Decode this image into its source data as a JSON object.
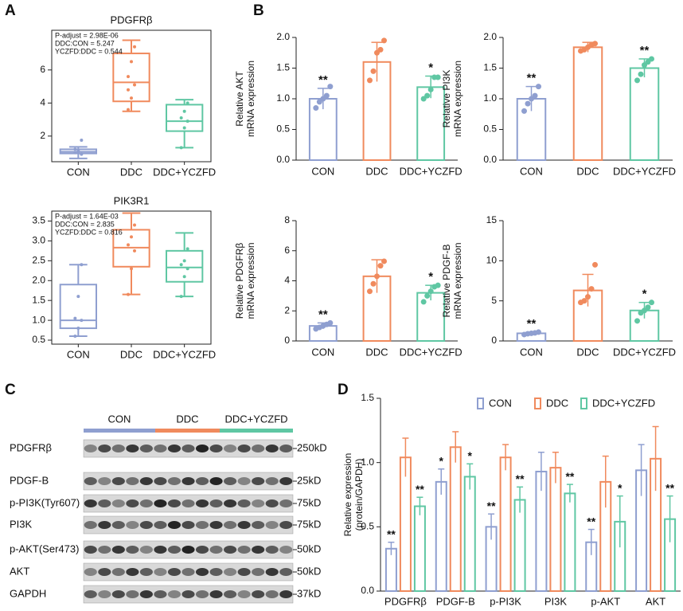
{
  "panel_labels": [
    "A",
    "B",
    "C",
    "D"
  ],
  "chart_data": [
    {
      "type": "box",
      "title": "PDGFRβ",
      "categories": [
        "CON",
        "DDC",
        "DDC+YCZFD"
      ],
      "colors": [
        "#8f9fd0",
        "#f08a5d",
        "#5fc7a3"
      ],
      "q1": [
        0.95,
        4.1,
        2.3
      ],
      "median": [
        1.05,
        5.25,
        2.9
      ],
      "q3": [
        1.2,
        7.0,
        3.9
      ],
      "whisker_low": [
        0.65,
        3.5,
        1.3
      ],
      "whisker_high": [
        1.35,
        7.8,
        4.2
      ],
      "points": [
        [
          1.0,
          1.1,
          0.9,
          1.2,
          1.05,
          1.75
        ],
        [
          3.6,
          4.3,
          5.1,
          5.6,
          6.5,
          7.4,
          4.8
        ],
        [
          1.3,
          2.5,
          2.9,
          3.1,
          3.5,
          4.0
        ]
      ],
      "annotation": [
        "P-adjust = 2.98E-06",
        "DDC:CON = 5.247",
        "YCZFD:DDC = 0.544"
      ],
      "ylim": [
        0.45,
        8.4
      ],
      "yticks": [
        2,
        4,
        6
      ]
    },
    {
      "type": "box",
      "title": "PIK3R1",
      "categories": [
        "CON",
        "DDC",
        "DDC+YCZFD"
      ],
      "colors": [
        "#8f9fd0",
        "#f08a5d",
        "#5fc7a3"
      ],
      "q1": [
        0.8,
        2.35,
        1.97
      ],
      "median": [
        1.0,
        2.83,
        2.33
      ],
      "q3": [
        1.9,
        3.28,
        2.75
      ],
      "whisker_low": [
        0.6,
        1.65,
        1.6
      ],
      "whisker_high": [
        2.4,
        3.7,
        3.2
      ],
      "points": [
        [
          0.6,
          0.8,
          1.0,
          1.05,
          1.6,
          2.4
        ],
        [
          1.65,
          2.3,
          2.75,
          2.9,
          3.1,
          3.4
        ],
        [
          1.6,
          2.1,
          2.3,
          2.4,
          2.5,
          2.8
        ]
      ],
      "annotation": [
        "P-adjust = 1.64E-03",
        "DDC:CON = 2.835",
        "YCZFD:DDC = 0.816"
      ],
      "ylim": [
        0.4,
        3.75
      ],
      "yticks": [
        {
          "value": 0.5,
          "label": "0.5"
        },
        {
          "value": 1,
          "label": "1.0"
        },
        {
          "value": 1.5,
          "label": "1.5"
        },
        {
          "value": 2,
          "label": "2.0"
        },
        {
          "value": 2.5,
          "label": "2.5"
        },
        {
          "value": 3,
          "label": "3.0"
        },
        {
          "value": 3.5,
          "label": "3.5"
        }
      ]
    },
    {
      "type": "bar",
      "ylabel": [
        "Relative AKT",
        "mRNA expression"
      ],
      "categories": [
        "CON",
        "DDC",
        "DDC+YCZFD"
      ],
      "colors": [
        "#8f9fd0",
        "#f08a5d",
        "#5fc7a3"
      ],
      "values": [
        1.0,
        1.6,
        1.19
      ],
      "errors": [
        0.17,
        0.32,
        0.18
      ],
      "points": [
        [
          0.85,
          0.95,
          1.0,
          1.05,
          1.2
        ],
        [
          1.3,
          1.45,
          1.75,
          1.8,
          1.95
        ],
        [
          1.0,
          1.05,
          1.15,
          1.35,
          1.35
        ]
      ],
      "significance": [
        "**",
        null,
        "*"
      ],
      "ylim": [
        0,
        2
      ],
      "yticks": [
        {
          "value": 0,
          "label": "0.0"
        },
        0.5,
        {
          "value": 1,
          "label": "1.0"
        },
        1.5,
        {
          "value": 2,
          "label": "2.0"
        }
      ]
    },
    {
      "type": "bar",
      "ylabel": [
        "Relative PI3K",
        "mRNA expression"
      ],
      "categories": [
        "CON",
        "DDC",
        "DDC+YCZFD"
      ],
      "colors": [
        "#8f9fd0",
        "#f08a5d",
        "#5fc7a3"
      ],
      "values": [
        1.0,
        1.84,
        1.5
      ],
      "errors": [
        0.2,
        0.08,
        0.15
      ],
      "points": [
        [
          0.8,
          0.92,
          1.0,
          1.05,
          1.2
        ],
        [
          1.78,
          1.8,
          1.84,
          1.88,
          1.9
        ],
        [
          1.3,
          1.4,
          1.55,
          1.6,
          1.65
        ]
      ],
      "significance": [
        "**",
        null,
        "**"
      ],
      "ylim": [
        0,
        2
      ],
      "yticks": [
        {
          "value": 0,
          "label": "0.0"
        },
        0.5,
        {
          "value": 1,
          "label": "1.0"
        },
        1.5,
        {
          "value": 2,
          "label": "2.0"
        }
      ]
    },
    {
      "type": "bar",
      "ylabel": [
        "Relative PDGFRβ",
        "mRNA expression"
      ],
      "categories": [
        "CON",
        "DDC",
        "DDC+YCZFD"
      ],
      "colors": [
        "#8f9fd0",
        "#f08a5d",
        "#5fc7a3"
      ],
      "values": [
        1.0,
        4.3,
        3.2
      ],
      "errors": [
        0.2,
        1.1,
        0.5
      ],
      "points": [
        [
          0.8,
          0.9,
          1.0,
          1.1,
          1.2
        ],
        [
          3.3,
          3.8,
          4.3,
          5.0,
          5.3
        ],
        [
          2.6,
          3.0,
          3.3,
          3.6,
          3.7
        ]
      ],
      "significance": [
        "**",
        null,
        "*"
      ],
      "ylim": [
        0,
        8
      ],
      "yticks": [
        0,
        2,
        4,
        6,
        8
      ]
    },
    {
      "type": "bar",
      "ylabel": [
        "Relative PDGF-B",
        "mRNA expression"
      ],
      "categories": [
        "CON",
        "DDC",
        "DDC+YCZFD"
      ],
      "colors": [
        "#8f9fd0",
        "#f08a5d",
        "#5fc7a3"
      ],
      "values": [
        0.95,
        6.3,
        3.8
      ],
      "errors": [
        0.15,
        2.0,
        1.0
      ],
      "points": [
        [
          0.8,
          0.9,
          0.95,
          1.0,
          1.1
        ],
        [
          4.8,
          5.0,
          5.5,
          6.5,
          9.5
        ],
        [
          2.5,
          3.5,
          3.8,
          4.2,
          4.8
        ]
      ],
      "significance": [
        "**",
        null,
        "*"
      ],
      "ylim": [
        0,
        15
      ],
      "yticks": [
        0,
        5,
        10,
        15
      ]
    },
    {
      "type": "grouped_bar",
      "ylabel": [
        "Relative expression",
        "(protein/GAPDH)"
      ],
      "categories": [
        "PDGFRβ",
        "PDGF-B",
        "p-PI3K",
        "PI3K",
        "p-AKT",
        "AKT"
      ],
      "series": [
        {
          "name": "CON",
          "color": "#8f9fd0",
          "values": [
            0.33,
            0.85,
            0.5,
            0.93,
            0.38,
            0.94
          ],
          "errors": [
            0.05,
            0.1,
            0.1,
            0.15,
            0.1,
            0.2
          ],
          "significance": [
            "**",
            "*",
            "**",
            null,
            "**",
            null
          ]
        },
        {
          "name": "DDC",
          "color": "#f08a5d",
          "values": [
            1.04,
            1.12,
            1.04,
            0.96,
            0.85,
            1.03
          ],
          "errors": [
            0.15,
            0.12,
            0.1,
            0.12,
            0.2,
            0.25
          ],
          "significance": [
            null,
            null,
            null,
            null,
            null,
            null
          ]
        },
        {
          "name": "DDC+YCZFD",
          "color": "#5fc7a3",
          "values": [
            0.66,
            0.89,
            0.71,
            0.76,
            0.54,
            0.56
          ],
          "errors": [
            0.07,
            0.1,
            0.1,
            0.07,
            0.2,
            0.18
          ],
          "significance": [
            "**",
            "*",
            "**",
            "**",
            "*",
            "**"
          ]
        }
      ],
      "legend": "top",
      "ylim": [
        0,
        1.5
      ],
      "yticks": [
        {
          "value": 0,
          "label": "0.0"
        },
        0.5,
        {
          "value": 1,
          "label": "1.0"
        },
        1.5
      ]
    }
  ],
  "blot": {
    "groups": [
      {
        "name": "CON",
        "color": "#8f9fd0"
      },
      {
        "name": "DDC",
        "color": "#f08a5d"
      },
      {
        "name": "DDC+YCZFD",
        "color": "#5fc7a3"
      }
    ],
    "rows": [
      {
        "protein": "PDGFRβ",
        "size": "250kD"
      },
      {
        "protein": "PDGF-B",
        "size": "25kD"
      },
      {
        "protein": "p-PI3K(Tyr607)",
        "size": "75kD"
      },
      {
        "protein": "PI3K",
        "size": "75kD"
      },
      {
        "protein": "p-AKT(Ser473)",
        "size": "50kD"
      },
      {
        "protein": "AKT",
        "size": "50kD"
      },
      {
        "protein": "GAPDH",
        "size": "37kD"
      }
    ]
  }
}
